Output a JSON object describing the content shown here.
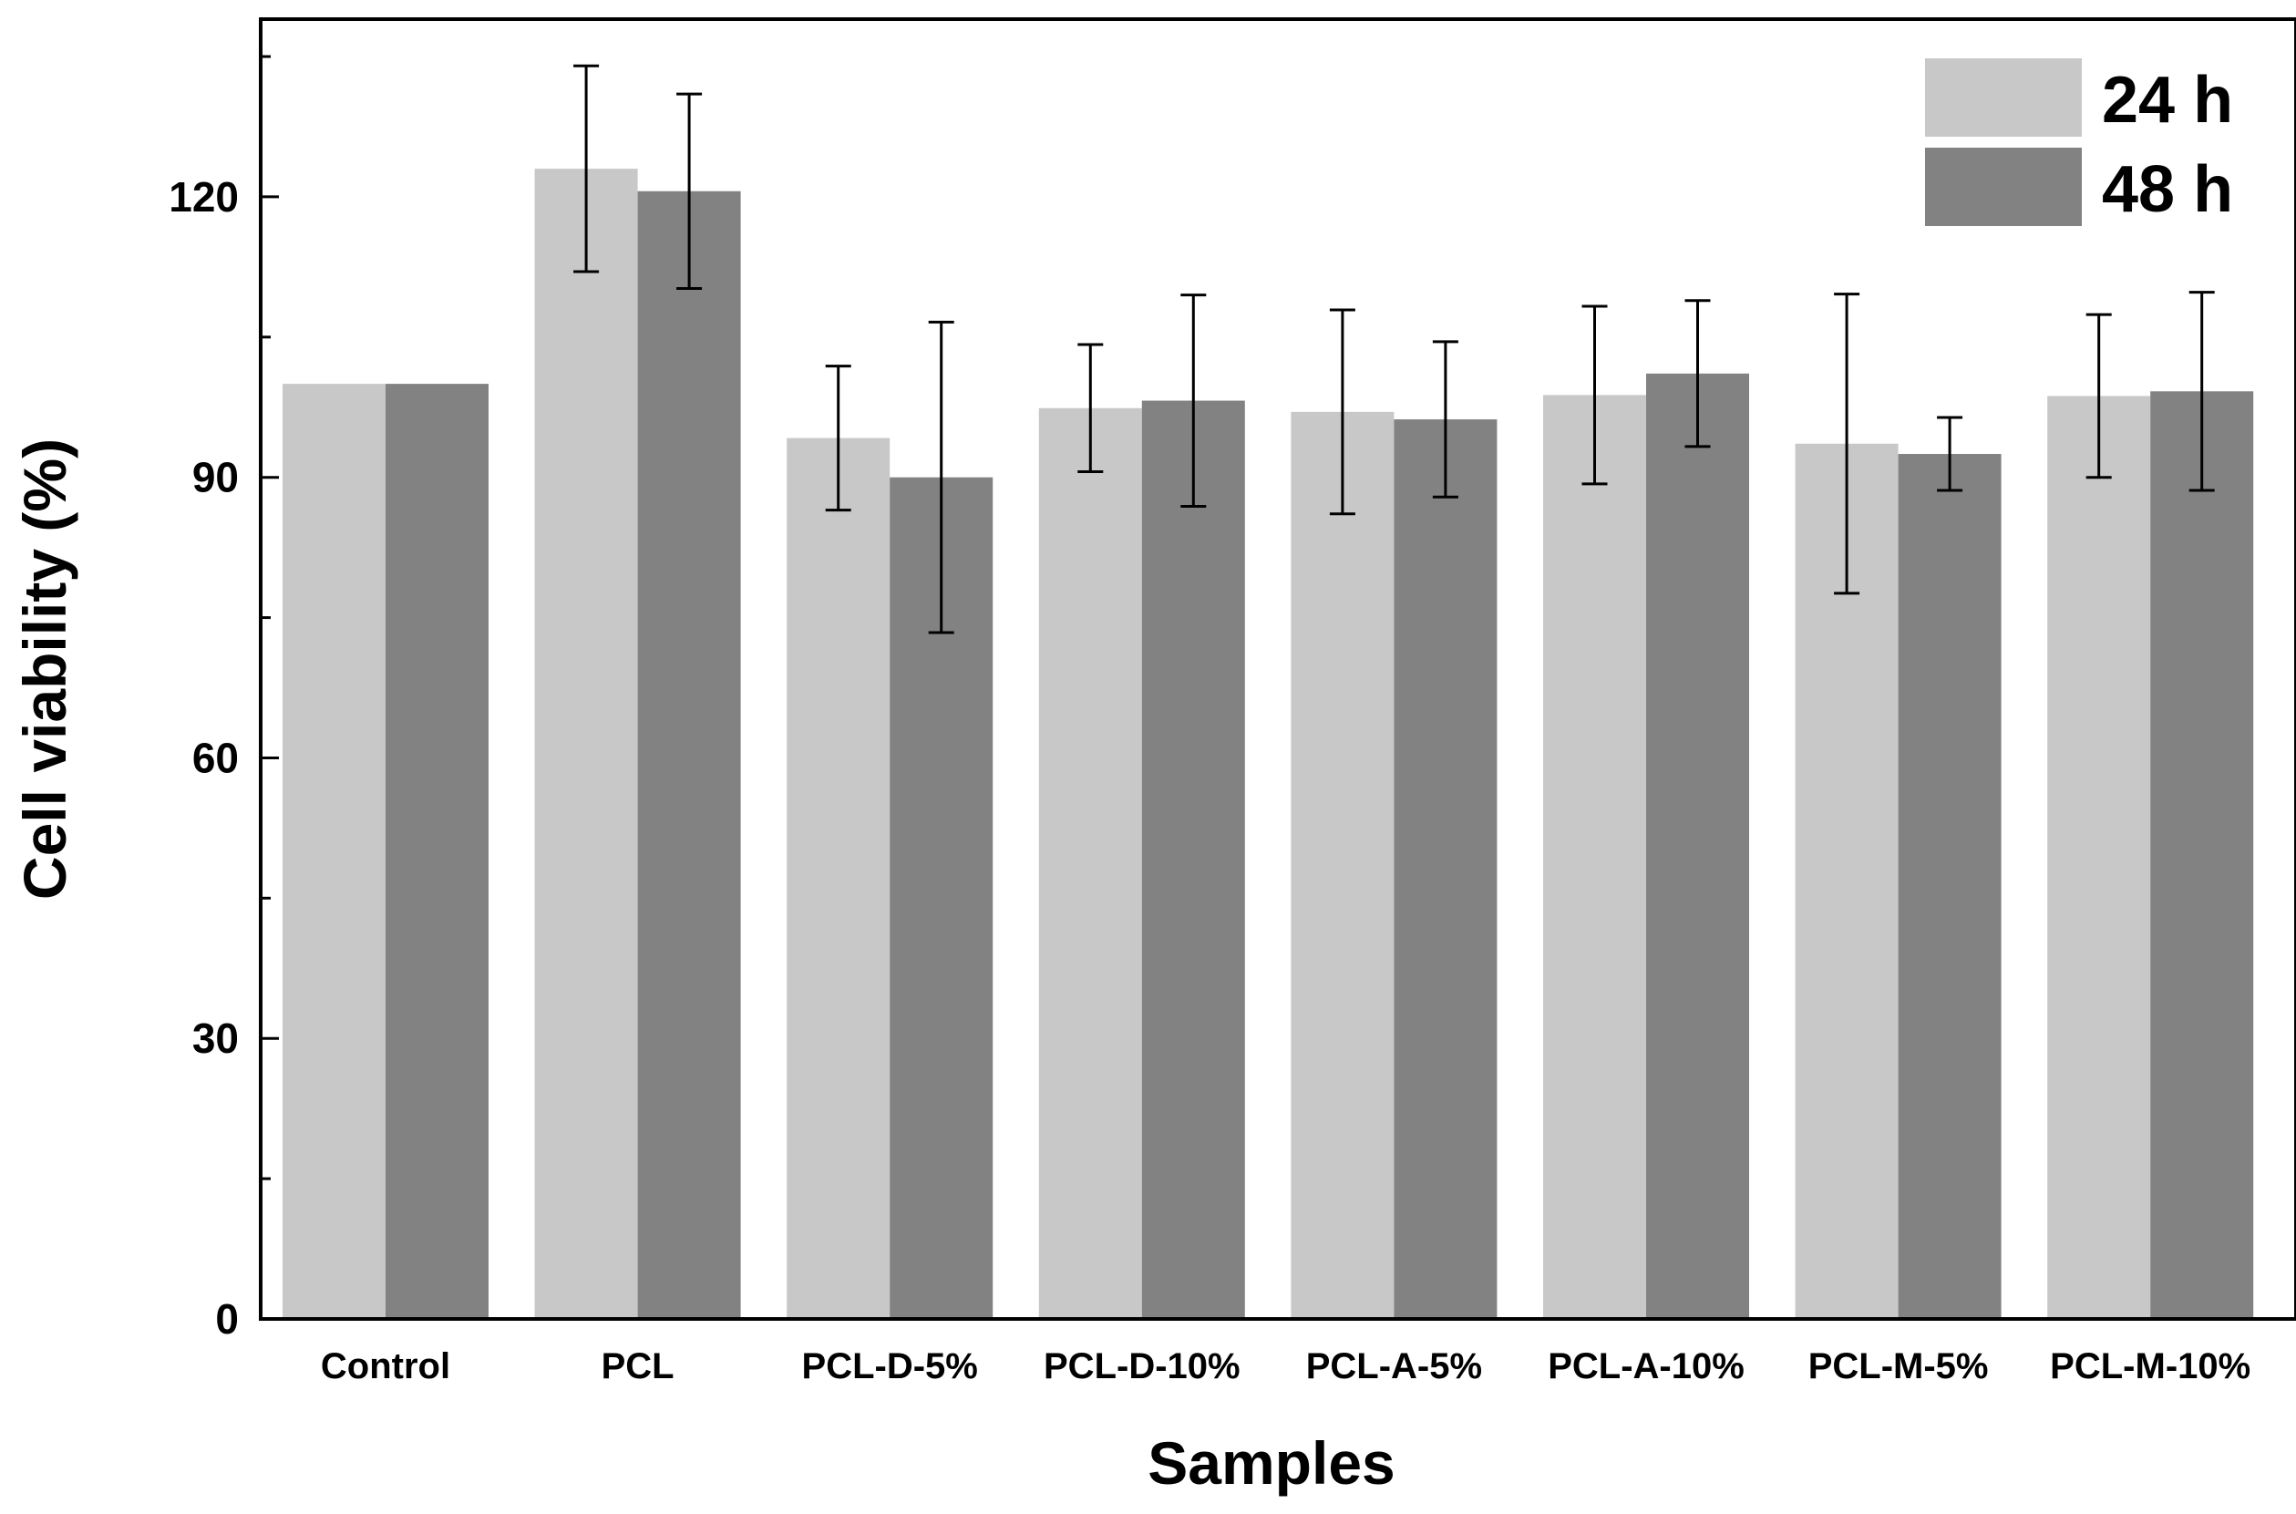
{
  "chart_data": {
    "type": "bar",
    "title": "",
    "xlabel": "Samples",
    "ylabel": "Cell viability (%)",
    "ylim": [
      0,
      139
    ],
    "yticks": [
      0,
      30,
      60,
      90,
      120
    ],
    "grid": false,
    "legend_position": "top-right",
    "categories": [
      "Control",
      "PCL",
      "PCL-D-5%",
      "PCL-D-10%",
      "PCL-A-5%",
      "PCL-A-10%",
      "PCL-M-5%",
      "PCL-M-10%"
    ],
    "series": [
      {
        "name": "24 h",
        "color": "#c8c8c8",
        "values": [
          100,
          123,
          94.2,
          97.4,
          97.0,
          98.8,
          93.6,
          98.7
        ],
        "errors": [
          0,
          11,
          7.7,
          6.8,
          10.9,
          9.5,
          16.0,
          8.7
        ]
      },
      {
        "name": "48 h",
        "color": "#828282",
        "values": [
          100,
          120.6,
          90.0,
          98.2,
          96.2,
          101.1,
          92.5,
          99.2
        ],
        "errors": [
          0,
          10.4,
          16.6,
          11.3,
          8.3,
          7.8,
          3.9,
          10.6
        ]
      }
    ]
  }
}
